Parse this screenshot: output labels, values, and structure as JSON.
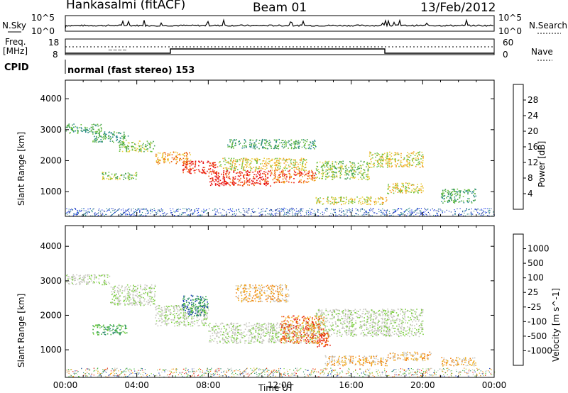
{
  "header": {
    "station": "Hankasalmi (fitACF)",
    "beam": "Beam 01",
    "date": "13/Feb/2012"
  },
  "top_panels": {
    "nsky_label": "N.Sky",
    "nsearch_label": "N.Search",
    "nsky_ticks": [
      "10^5",
      "10^0"
    ],
    "nsearch_ticks": [
      "10^5",
      "10^0"
    ],
    "freq_label_1": "Freq.",
    "freq_label_2": "[MHz]",
    "freq_ticks": [
      "18",
      "8"
    ],
    "nave_label": "Nave",
    "nave_ticks": [
      "60",
      "0"
    ],
    "cpid_label": "CPID",
    "cpid_text": "normal (fast stereo) 153"
  },
  "chart_data": [
    {
      "type": "heatmap",
      "name": "power",
      "xlabel": "",
      "ylabel": "Slant Range [km]",
      "xlim": [
        0,
        24
      ],
      "ylim": [
        200,
        4600
      ],
      "yticks": [
        "1000",
        "2000",
        "3000",
        "4000"
      ],
      "colorbar": {
        "label": "Power [dB]",
        "ticks": [
          "28",
          "24",
          "20",
          "16",
          "12",
          "8",
          "4"
        ],
        "colors": [
          "#1030e8",
          "#1c3c9c",
          "#2a8a8a",
          "#40a050",
          "#6cc040",
          "#e8d040",
          "#f0a020",
          "#f06010",
          "#e81010"
        ]
      },
      "regions": [
        {
          "t0": 0.0,
          "t1": 2.0,
          "r0": 2900,
          "r1": 3200,
          "level": 3
        },
        {
          "t0": 1.5,
          "t1": 3.5,
          "r0": 2600,
          "r1": 2950,
          "level": 3
        },
        {
          "t0": 3.0,
          "t1": 5.0,
          "r0": 2300,
          "r1": 2650,
          "level": 4
        },
        {
          "t0": 5.0,
          "t1": 7.0,
          "r0": 1900,
          "r1": 2300,
          "level": 6
        },
        {
          "t0": 6.5,
          "t1": 8.5,
          "r0": 1600,
          "r1": 2000,
          "level": 8
        },
        {
          "t0": 8.0,
          "t1": 11.5,
          "r0": 1200,
          "r1": 1700,
          "level": 8
        },
        {
          "t0": 11.5,
          "t1": 14.0,
          "r0": 1300,
          "r1": 1700,
          "level": 7
        },
        {
          "t0": 8.5,
          "t1": 13.5,
          "r0": 1700,
          "r1": 2100,
          "level": 5
        },
        {
          "t0": 14.0,
          "t1": 17.0,
          "r0": 1400,
          "r1": 2000,
          "level": 4
        },
        {
          "t0": 17.0,
          "t1": 20.0,
          "r0": 1800,
          "r1": 2300,
          "level": 5
        },
        {
          "t0": 14.0,
          "t1": 18.0,
          "r0": 600,
          "r1": 850,
          "level": 5
        },
        {
          "t0": 18.0,
          "t1": 20.0,
          "r0": 950,
          "r1": 1300,
          "level": 5
        },
        {
          "t0": 2.0,
          "t1": 4.0,
          "r0": 1400,
          "r1": 1650,
          "level": 4
        },
        {
          "t0": 21.0,
          "t1": 23.0,
          "r0": 650,
          "r1": 1100,
          "level": 3
        },
        {
          "t0": 9.0,
          "t1": 14.0,
          "r0": 2400,
          "r1": 2700,
          "level": 3
        }
      ]
    },
    {
      "type": "heatmap",
      "name": "velocity",
      "xlabel": "Time UT",
      "ylabel": "Slant Range [km]",
      "xlim": [
        0,
        24
      ],
      "ylim": [
        200,
        4600
      ],
      "yticks": [
        "1000",
        "2000",
        "3000",
        "4000"
      ],
      "xticks": [
        "00:00",
        "04:00",
        "08:00",
        "12:00",
        "16:00",
        "20:00",
        "00:00"
      ],
      "colorbar": {
        "label": "Velocity [m s^-1]",
        "ticks": [
          "1000",
          "500",
          "100",
          "25",
          "-25",
          "-100",
          "-500",
          "-1000"
        ],
        "colors": [
          "#1c40b8",
          "#2c8a6a",
          "#40b040",
          "#7cd040",
          "#c8c8c0",
          "#c8c8c0",
          "#f0b020",
          "#f08010",
          "#e82010"
        ]
      },
      "regions": [
        {
          "t0": 0.0,
          "t1": 2.5,
          "r0": 2900,
          "r1": 3200,
          "level": 4
        },
        {
          "t0": 2.5,
          "t1": 5.0,
          "r0": 2300,
          "r1": 2900,
          "level": 4
        },
        {
          "t0": 5.0,
          "t1": 8.0,
          "r0": 1700,
          "r1": 2300,
          "level": 4
        },
        {
          "t0": 8.0,
          "t1": 14.0,
          "r0": 1200,
          "r1": 1800,
          "level": 4
        },
        {
          "t0": 14.0,
          "t1": 20.0,
          "r0": 1400,
          "r1": 2200,
          "level": 4
        },
        {
          "t0": 6.5,
          "t1": 8.0,
          "r0": 2000,
          "r1": 2600,
          "level": 1
        },
        {
          "t0": 12.0,
          "t1": 14.5,
          "r0": 1200,
          "r1": 2000,
          "level": 7
        },
        {
          "t0": 14.0,
          "t1": 14.8,
          "r0": 1100,
          "r1": 1500,
          "level": 8
        },
        {
          "t0": 14.5,
          "t1": 18.0,
          "r0": 550,
          "r1": 850,
          "level": 6
        },
        {
          "t0": 18.0,
          "t1": 20.5,
          "r0": 700,
          "r1": 950,
          "level": 6
        },
        {
          "t0": 1.5,
          "t1": 3.5,
          "r0": 1450,
          "r1": 1750,
          "level": 2
        },
        {
          "t0": 21.0,
          "t1": 23.0,
          "r0": 550,
          "r1": 800,
          "level": 6
        },
        {
          "t0": 9.5,
          "t1": 12.5,
          "r0": 2400,
          "r1": 2900,
          "level": 6
        }
      ]
    }
  ]
}
